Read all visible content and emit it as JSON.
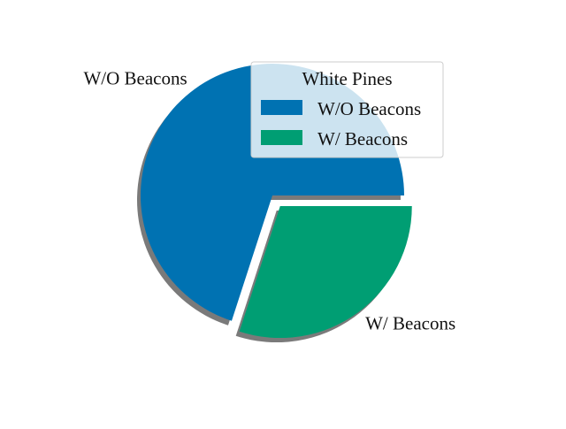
{
  "chart_data": {
    "type": "pie",
    "title": "",
    "slices": [
      {
        "label": "W/O Beacons",
        "value": 70,
        "color": "#0072b2",
        "exploded": false
      },
      {
        "label": "W/ Beacons",
        "value": 30,
        "color": "#009e73",
        "exploded": true
      }
    ],
    "start_angle_deg": 0,
    "direction": "counterclockwise",
    "shadow": true,
    "legend": {
      "title": "White Pines",
      "placement": "top-right",
      "entries": [
        "W/O Beacons",
        "W/ Beacons"
      ]
    }
  }
}
